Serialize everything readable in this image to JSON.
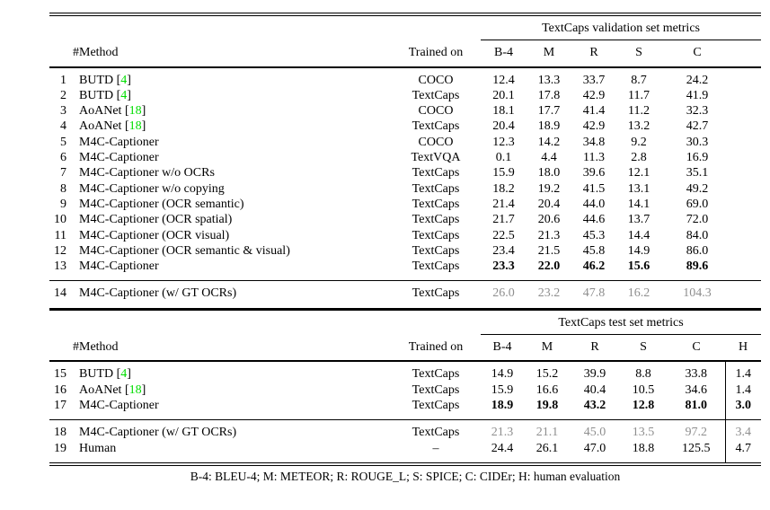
{
  "colors": {
    "citation_green": "#00dd00",
    "muted_gray": "#8e8e8e"
  },
  "footnote": "B-4: BLEU-4; M: METEOR; R: ROUGE_L; S: SPICE; C: CIDEr; H: human evaluation",
  "tables": [
    {
      "name": "validation-metrics-table",
      "group_header": "TextCaps validation set metrics",
      "header": {
        "num": "#",
        "method": "Method",
        "trained": "Trained on",
        "metrics": [
          "B-4",
          "M",
          "R",
          "S",
          "C"
        ]
      },
      "sections": [
        {
          "rows": [
            {
              "num": "1",
              "method": "BUTD",
              "cite": "4",
              "trained": "COCO",
              "values": [
                "12.4",
                "13.3",
                "33.7",
                "8.7",
                "24.2"
              ]
            },
            {
              "num": "2",
              "method": "BUTD",
              "cite": "4",
              "trained": "TextCaps",
              "values": [
                "20.1",
                "17.8",
                "42.9",
                "11.7",
                "41.9"
              ]
            },
            {
              "num": "3",
              "method": "AoANet",
              "cite": "18",
              "trained": "COCO",
              "values": [
                "18.1",
                "17.7",
                "41.4",
                "11.2",
                "32.3"
              ]
            },
            {
              "num": "4",
              "method": "AoANet",
              "cite": "18",
              "trained": "TextCaps",
              "values": [
                "20.4",
                "18.9",
                "42.9",
                "13.2",
                "42.7"
              ]
            },
            {
              "num": "5",
              "method": "M4C-Captioner",
              "trained": "COCO",
              "values": [
                "12.3",
                "14.2",
                "34.8",
                "9.2",
                "30.3"
              ]
            },
            {
              "num": "6",
              "method": "M4C-Captioner",
              "trained": "TextVQA",
              "values": [
                "0.1",
                "4.4",
                "11.3",
                "2.8",
                "16.9"
              ]
            },
            {
              "num": "7",
              "method": "M4C-Captioner w/o OCRs",
              "trained": "TextCaps",
              "values": [
                "15.9",
                "18.0",
                "39.6",
                "12.1",
                "35.1"
              ]
            },
            {
              "num": "8",
              "method": "M4C-Captioner w/o copying",
              "trained": "TextCaps",
              "values": [
                "18.2",
                "19.2",
                "41.5",
                "13.1",
                "49.2"
              ]
            },
            {
              "num": "9",
              "method": "M4C-Captioner (OCR semantic)",
              "trained": "TextCaps",
              "values": [
                "21.4",
                "20.4",
                "44.0",
                "14.1",
                "69.0"
              ]
            },
            {
              "num": "10",
              "method": "M4C-Captioner (OCR spatial)",
              "trained": "TextCaps",
              "values": [
                "21.7",
                "20.6",
                "44.6",
                "13.7",
                "72.0"
              ]
            },
            {
              "num": "11",
              "method": "M4C-Captioner (OCR visual)",
              "trained": "TextCaps",
              "values": [
                "22.5",
                "21.3",
                "45.3",
                "14.4",
                "84.0"
              ]
            },
            {
              "num": "12",
              "method": "M4C-Captioner (OCR semantic & visual)",
              "trained": "TextCaps",
              "values": [
                "23.4",
                "21.5",
                "45.8",
                "14.9",
                "86.0"
              ]
            },
            {
              "num": "13",
              "method": "M4C-Captioner",
              "trained": "TextCaps",
              "values": [
                "23.3",
                "22.0",
                "46.2",
                "15.6",
                "89.6"
              ],
              "bold_values": true
            }
          ]
        },
        {
          "rows": [
            {
              "num": "14",
              "method": "M4C-Captioner (w/ GT OCRs)",
              "trained": "TextCaps",
              "values": [
                "26.0",
                "23.2",
                "47.8",
                "16.2",
                "104.3"
              ],
              "muted_values": true
            }
          ]
        }
      ]
    },
    {
      "name": "test-metrics-table",
      "group_header": "TextCaps test set metrics",
      "header": {
        "num": "#",
        "method": "Method",
        "trained": "Trained on",
        "metrics": [
          "B-4",
          "M",
          "R",
          "S",
          "C",
          "H"
        ]
      },
      "h_divider": true,
      "sections": [
        {
          "rows": [
            {
              "num": "15",
              "method": "BUTD",
              "cite": "4",
              "trained": "TextCaps",
              "values": [
                "14.9",
                "15.2",
                "39.9",
                "8.8",
                "33.8",
                "1.4"
              ]
            },
            {
              "num": "16",
              "method": "AoANet",
              "cite": "18",
              "trained": "TextCaps",
              "values": [
                "15.9",
                "16.6",
                "40.4",
                "10.5",
                "34.6",
                "1.4"
              ]
            },
            {
              "num": "17",
              "method": "M4C-Captioner",
              "trained": "TextCaps",
              "values": [
                "18.9",
                "19.8",
                "43.2",
                "12.8",
                "81.0",
                "3.0"
              ],
              "bold_values": true
            }
          ]
        },
        {
          "rows": [
            {
              "num": "18",
              "method": "M4C-Captioner (w/ GT OCRs)",
              "trained": "TextCaps",
              "values": [
                "21.3",
                "21.1",
                "45.0",
                "13.5",
                "97.2",
                "3.4"
              ],
              "muted_values": true
            },
            {
              "num": "19",
              "method": "Human",
              "trained": "–",
              "values": [
                "24.4",
                "26.1",
                "47.0",
                "18.8",
                "125.5",
                "4.7"
              ]
            }
          ]
        }
      ]
    }
  ]
}
